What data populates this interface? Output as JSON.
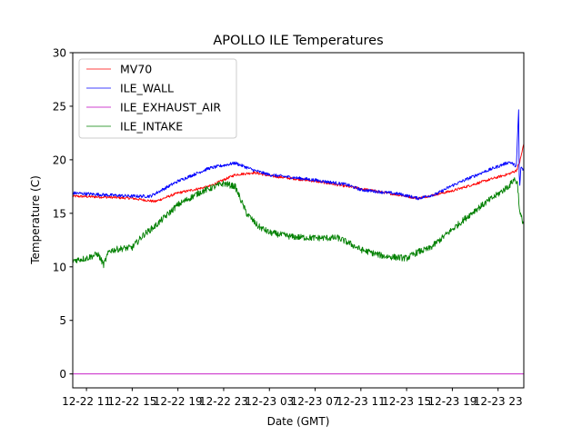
{
  "chart_data": {
    "type": "line",
    "title": "APOLLO ILE Temperatures",
    "xlabel": "Date (GMT)",
    "ylabel": "Temperature (C)",
    "x_unit": "hours after 12-22 00:00 GMT",
    "xlim": [
      9.8,
      49.25
    ],
    "ylim": [
      -1.3,
      30
    ],
    "yticks": [
      0,
      5,
      10,
      15,
      20,
      25,
      30
    ],
    "xticks": [
      {
        "value": 11,
        "label": "12-22 11"
      },
      {
        "value": 15,
        "label": "12-22 15"
      },
      {
        "value": 19,
        "label": "12-22 19"
      },
      {
        "value": 23,
        "label": "12-22 23"
      },
      {
        "value": 27,
        "label": "12-23 03"
      },
      {
        "value": 31,
        "label": "12-23 07"
      },
      {
        "value": 35,
        "label": "12-23 11"
      },
      {
        "value": 39,
        "label": "12-23 15"
      },
      {
        "value": 43,
        "label": "12-23 19"
      },
      {
        "value": 47,
        "label": "12-23 23"
      }
    ],
    "grid": false,
    "legend_position": "top-left",
    "series": [
      {
        "name": "MV70",
        "color": "#ff0000",
        "legend_color": "#ff0000",
        "noise": 0.12,
        "x": [
          9.8,
          13,
          15,
          17,
          19,
          21.7,
          24,
          25.7,
          27,
          31,
          35,
          38.4,
          40,
          43,
          46.4,
          48,
          48.6,
          48.9,
          49.25
        ],
        "y": [
          16.6,
          16.5,
          16.4,
          16.1,
          16.9,
          17.5,
          18.6,
          18.8,
          18.5,
          18.0,
          17.3,
          16.7,
          16.4,
          17.1,
          18.2,
          18.7,
          19.0,
          19.8,
          21.5
        ]
      },
      {
        "name": "ILE_WALL",
        "color": "#0000ff",
        "legend_color": "#0000ff",
        "noise": 0.15,
        "x": [
          9.8,
          13,
          15,
          16.6,
          19,
          21.7,
          24,
          25.7,
          27,
          31,
          33.7,
          35,
          38.4,
          40,
          41.6,
          43,
          45.6,
          48,
          48.6,
          48.8,
          48.85,
          48.9,
          49.0,
          49.25
        ],
        "y": [
          16.9,
          16.7,
          16.6,
          16.6,
          18.0,
          19.2,
          19.7,
          19.0,
          18.6,
          18.1,
          17.7,
          17.2,
          16.8,
          16.4,
          16.8,
          17.6,
          18.8,
          19.8,
          19.4,
          24.7,
          18.5,
          17.6,
          19.3,
          19.0
        ]
      },
      {
        "name": "ILE_EXHAUST_AIR",
        "color": "#bf00bf",
        "legend_color": "#bf00bf",
        "noise": 0,
        "x": [
          9.8,
          49.25
        ],
        "y": [
          0,
          0
        ]
      },
      {
        "name": "ILE_INTAKE",
        "color": "#008000",
        "legend_color": "#008000",
        "noise": 0.3,
        "x": [
          9.8,
          11,
          12,
          12.5,
          13,
          14,
          15,
          15.5,
          16,
          17,
          19,
          21,
          23,
          24,
          25,
          26,
          27,
          29,
          31,
          33,
          34,
          35,
          37,
          39,
          40,
          41,
          43,
          45,
          47,
          48,
          48.4,
          48.7,
          48.9,
          49.25
        ],
        "y": [
          10.6,
          10.8,
          11.2,
          10.2,
          11.5,
          11.7,
          11.8,
          12.4,
          13.0,
          13.8,
          15.8,
          17.0,
          17.8,
          17.5,
          15.0,
          13.8,
          13.2,
          12.8,
          12.7,
          12.7,
          12.2,
          11.6,
          11.0,
          10.8,
          11.4,
          11.7,
          13.5,
          15.3,
          16.8,
          17.6,
          18.2,
          17.8,
          15.0,
          14.0
        ]
      }
    ]
  }
}
